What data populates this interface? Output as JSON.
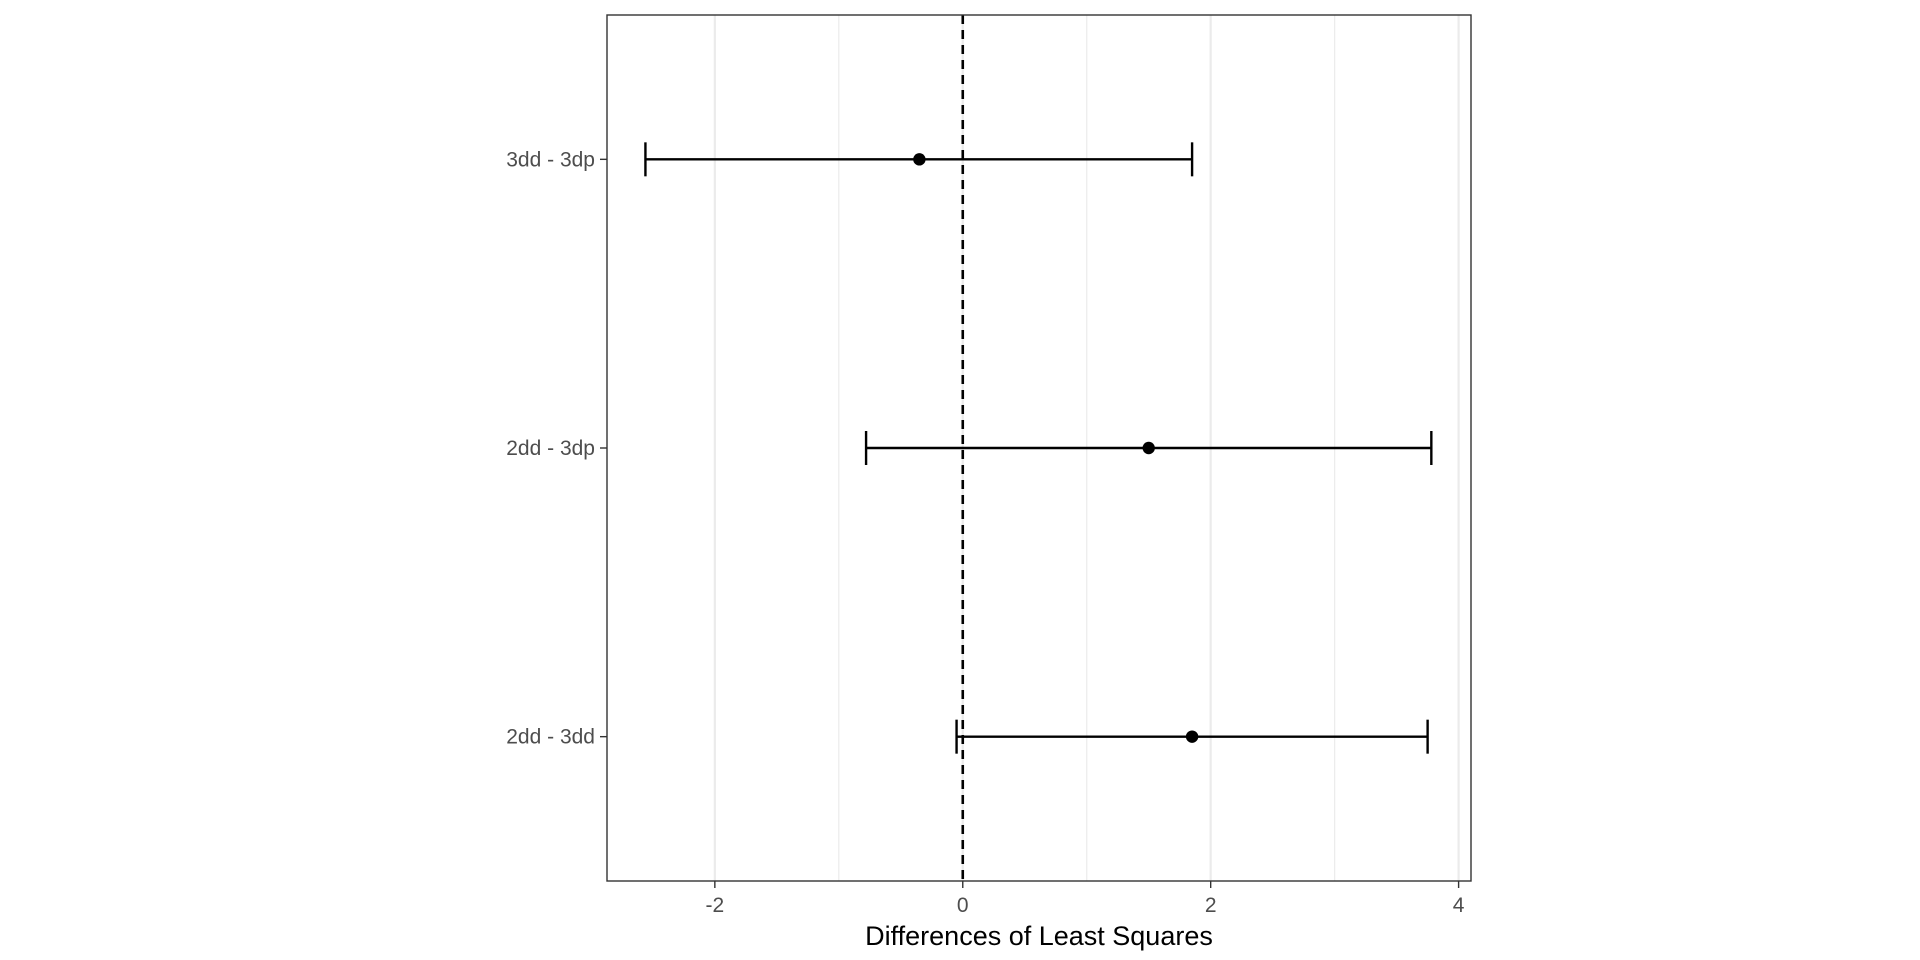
{
  "chart_data": {
    "type": "errorbar",
    "xlabel": "Differences of Least Squares",
    "ylabel": "",
    "xlim": [
      -2.87,
      4.1
    ],
    "x_ticks": [
      -2,
      0,
      2,
      4
    ],
    "x_tick_labels": [
      "-2",
      "0",
      "2",
      "4"
    ],
    "x_minor_gridlines": [
      -1,
      1,
      3
    ],
    "reference_line": {
      "x": 0,
      "style": "dashed"
    },
    "grid": "vertical",
    "categories": [
      "3dd - 3dp",
      "2dd - 3dp",
      "2dd - 3dd"
    ],
    "estimates": [
      -0.35,
      1.5,
      1.85
    ],
    "lower": [
      -2.56,
      -0.78,
      -0.05
    ],
    "upper": [
      1.85,
      3.78,
      3.75
    ],
    "colors": {
      "point": "#000000",
      "errorbar": "#000000",
      "grid": "#ebebeb",
      "panel_border": "#333333",
      "tick_text": "#4d4d4d"
    }
  }
}
